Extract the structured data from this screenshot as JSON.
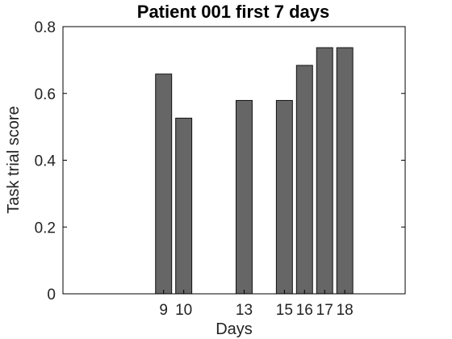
{
  "chart_data": {
    "type": "bar",
    "title": "Patient 001 first 7 days",
    "xlabel": "Days",
    "ylabel": "Task trial score",
    "xlim": [
      4,
      21
    ],
    "ylim": [
      0,
      0.8
    ],
    "yticks": [
      0,
      0.2,
      0.4,
      0.6,
      0.8
    ],
    "ytick_labels": [
      "0",
      "0.2",
      "0.4",
      "0.6",
      "0.8"
    ],
    "bar_width_days": 0.8,
    "bar_color": "#666666",
    "bars": [
      {
        "day": 9,
        "label": "9",
        "value": 0.658
      },
      {
        "day": 10,
        "label": "10",
        "value": 0.526
      },
      {
        "day": 13,
        "label": "13",
        "value": 0.579
      },
      {
        "day": 15,
        "label": "15",
        "value": 0.579
      },
      {
        "day": 16,
        "label": "16",
        "value": 0.684
      },
      {
        "day": 17,
        "label": "17",
        "value": 0.737
      },
      {
        "day": 18,
        "label": "18",
        "value": 0.737
      }
    ],
    "grid": false,
    "legend": "none"
  }
}
